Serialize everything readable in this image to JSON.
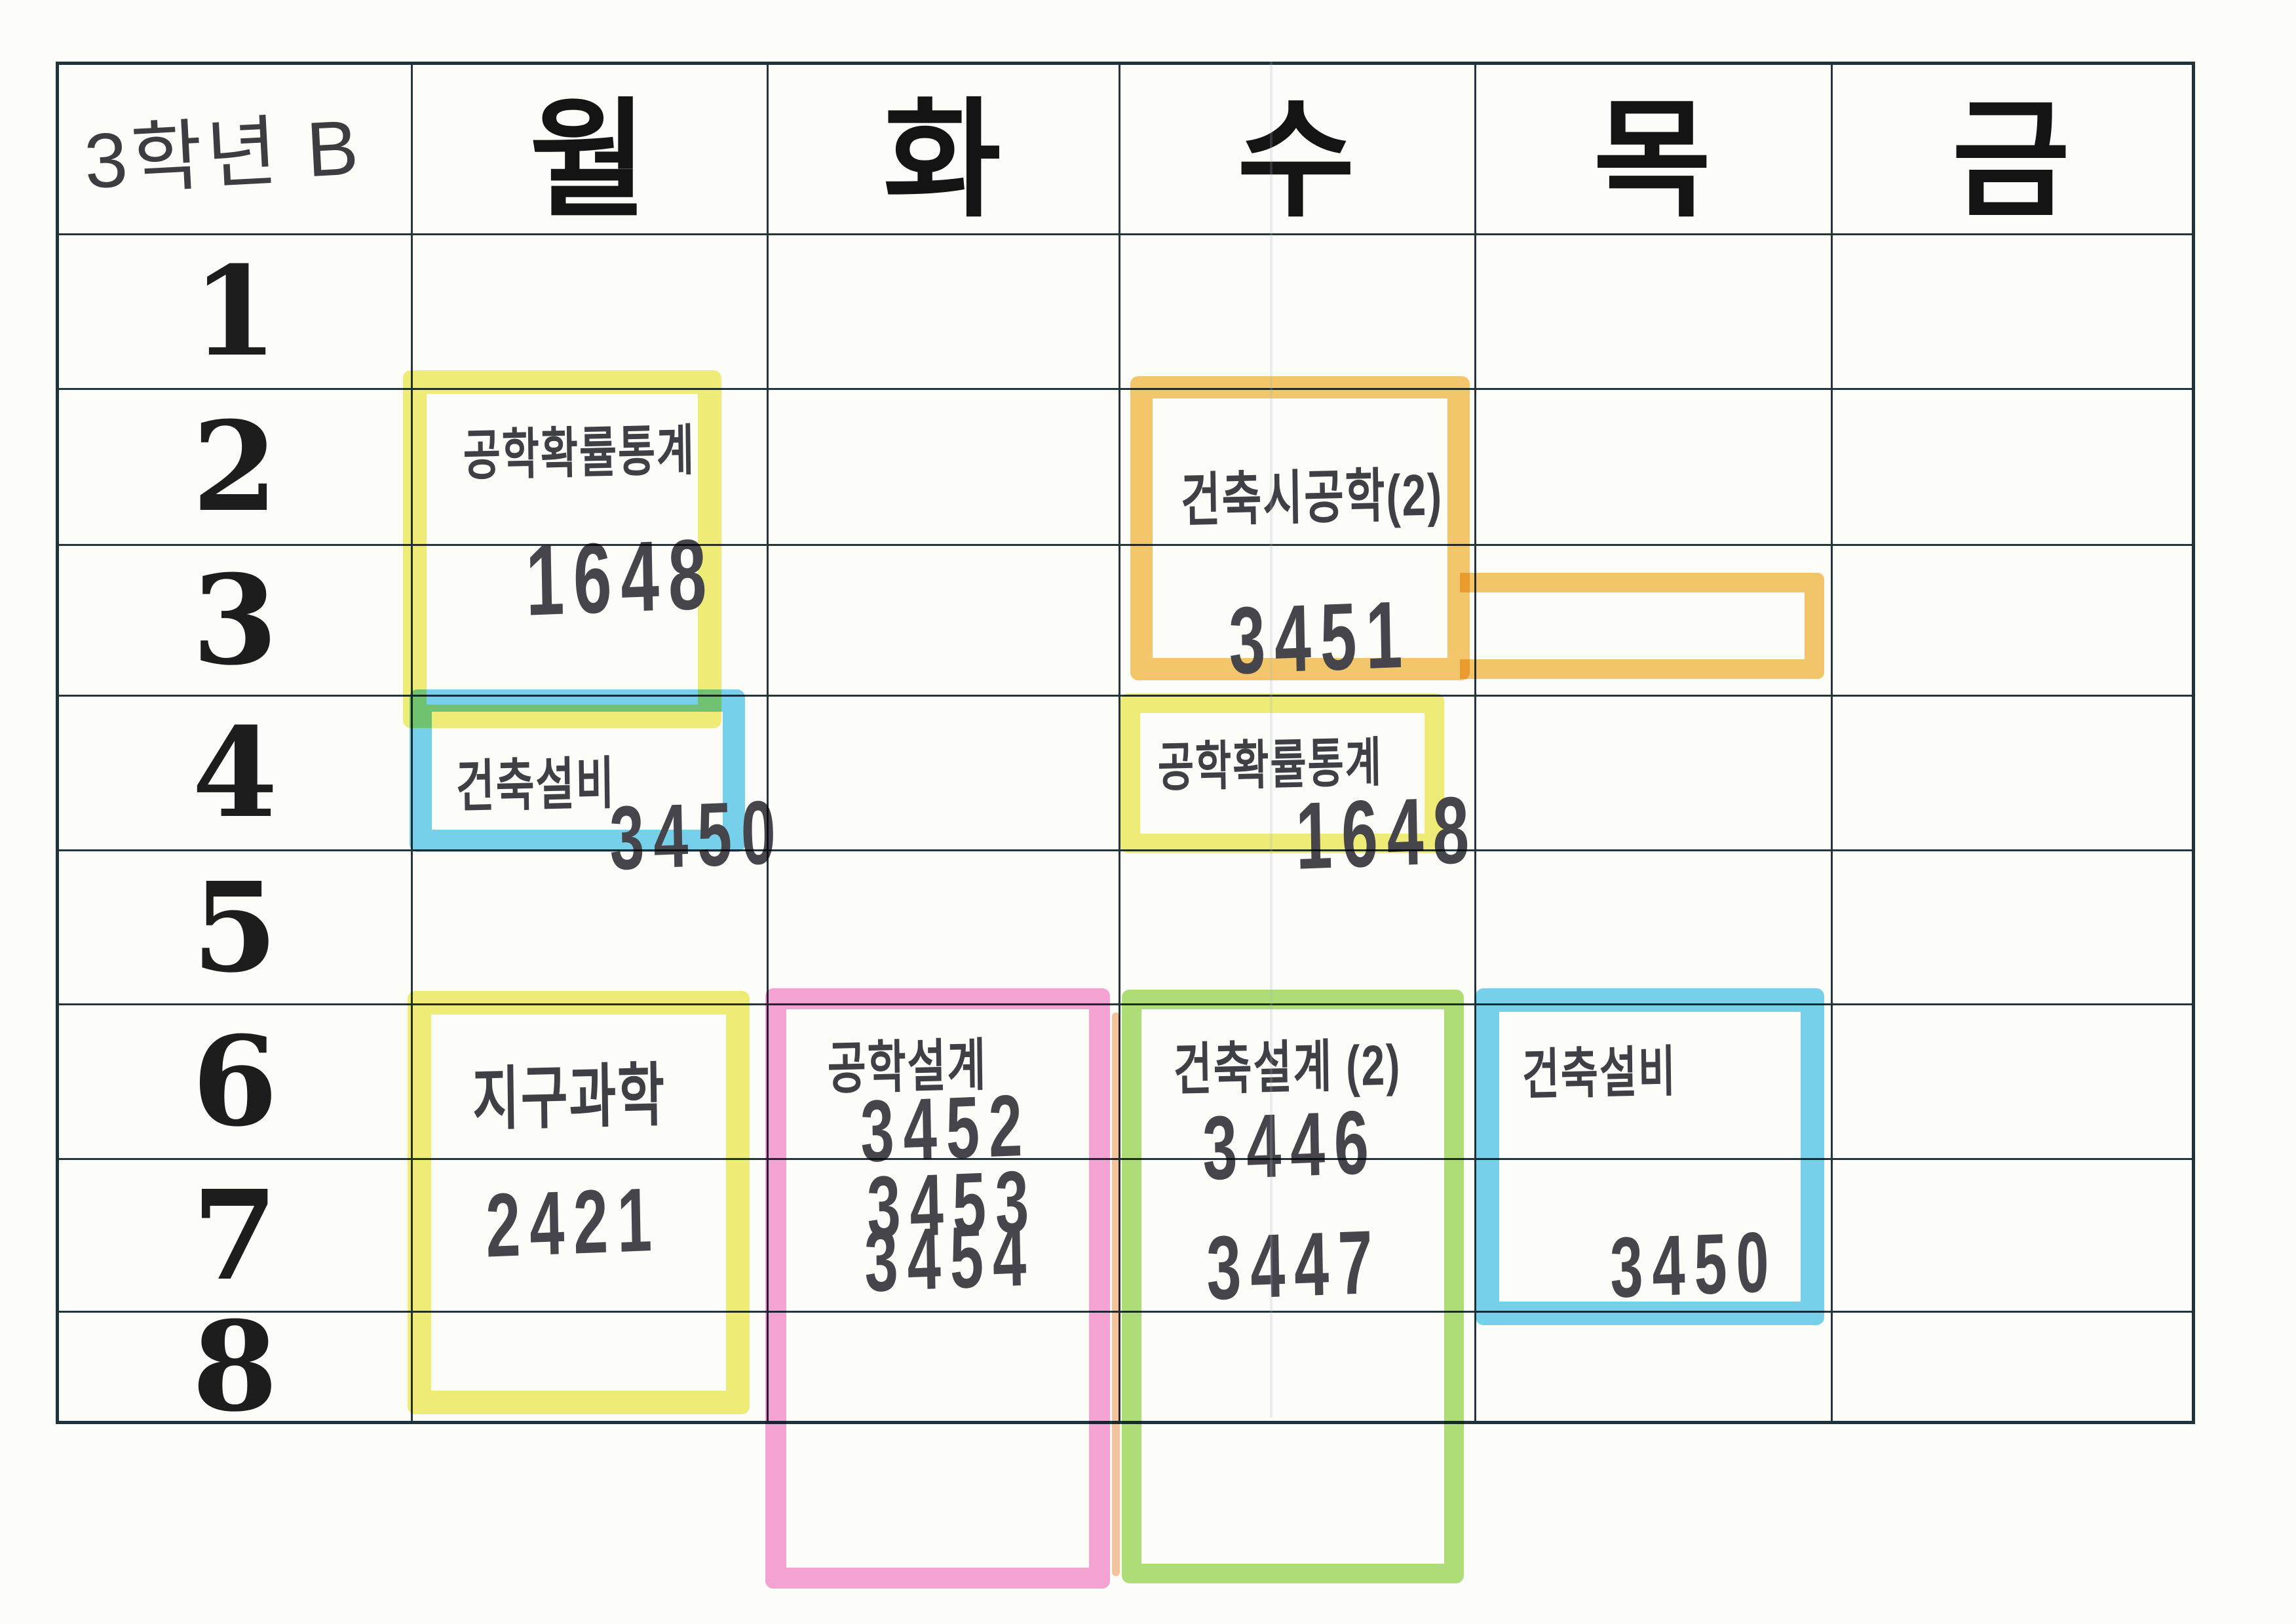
{
  "sheet": {
    "class_label": "3학년 B"
  },
  "days": [
    "월",
    "화",
    "수",
    "목",
    "금"
  ],
  "periods": [
    "1",
    "2",
    "3",
    "4",
    "5",
    "6",
    "7",
    "8"
  ],
  "marker_colors": {
    "yellow": "#f0ed6f",
    "orange": "#f5c462",
    "blue": "#6ccfee",
    "pink": "#f59cd3",
    "green": "#a9dd70"
  },
  "ink_colors": {
    "pen": "#46464d",
    "print": "#1d1d1d",
    "grid_line": "#24363c"
  },
  "entries": [
    {
      "id": "mon-2-3",
      "day": "월",
      "period_span": "2-3",
      "subject": "공학확률통계",
      "rooms": [
        "1648"
      ],
      "color": "yellow"
    },
    {
      "id": "wed-2-3",
      "day": "수",
      "period_span": "2-3",
      "subject": "건축시공학(2)",
      "rooms": [
        "3451"
      ],
      "color": "orange"
    },
    {
      "id": "mon-4",
      "day": "월",
      "period_span": "4",
      "subject": "건축설비",
      "rooms": [
        "3450"
      ],
      "color": "blue"
    },
    {
      "id": "wed-4",
      "day": "수",
      "period_span": "4",
      "subject": "공학확률통계",
      "rooms": [
        "1648"
      ],
      "color": "yellow"
    },
    {
      "id": "mon-6-8",
      "day": "월",
      "period_span": "6-8",
      "subject": "지구과학",
      "rooms": [
        "2421"
      ],
      "color": "yellow"
    },
    {
      "id": "tue-6-8",
      "day": "화",
      "period_span": "6-8",
      "subject": "공학설계",
      "rooms": [
        "3452",
        "3453",
        "3454"
      ],
      "color": "pink"
    },
    {
      "id": "wed-6-8",
      "day": "수",
      "period_span": "6-8",
      "subject": "건축설계 (2)",
      "rooms": [
        "3446",
        "3447"
      ],
      "color": "green"
    },
    {
      "id": "thu-6-7",
      "day": "목",
      "period_span": "6-7",
      "subject": "건축설비",
      "rooms": [
        "3450"
      ],
      "color": "blue"
    }
  ]
}
